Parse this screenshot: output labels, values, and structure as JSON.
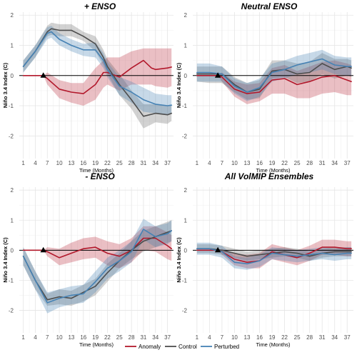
{
  "chart_data": [
    {
      "type": "line",
      "title": "+ ENSO",
      "xlabel": "Time (Months)",
      "ylabel": "Niño 3.4 Index (C)",
      "xticks": [
        "1",
        "4",
        "7",
        "10",
        "13",
        "16",
        "19",
        "22",
        "25",
        "28",
        "31",
        "34",
        "37"
      ],
      "yticks": [
        "-2",
        "-1",
        "0",
        "1",
        "2"
      ],
      "xlim": [
        0,
        38.5
      ],
      "ylim": [
        -2.75,
        2.1
      ],
      "marker": {
        "x": 6,
        "y": 0
      },
      "series": [
        {
          "name": "Anomaly",
          "color": "#b2182b",
          "x": [
            1,
            4,
            6,
            7,
            10,
            13,
            16,
            19,
            21,
            22,
            25,
            28,
            31,
            33,
            34,
            37,
            38
          ],
          "y": [
            0,
            0,
            0,
            -0.1,
            -0.45,
            -0.55,
            -0.6,
            -0.3,
            0.1,
            0.1,
            -0.05,
            0.25,
            0.5,
            0.25,
            0.2,
            0.25,
            0.28
          ],
          "lower": [
            0,
            0,
            0,
            -0.3,
            -0.75,
            -0.9,
            -1.0,
            -0.8,
            -0.4,
            -0.3,
            -0.5,
            -0.3,
            -0.3,
            -0.3,
            -0.35,
            -0.4,
            -0.35
          ],
          "upper": [
            0,
            0,
            0,
            0.1,
            -0.15,
            -0.25,
            -0.25,
            0.25,
            0.5,
            0.6,
            0.6,
            0.8,
            0.9,
            0.9,
            0.9,
            0.9,
            0.9
          ]
        },
        {
          "name": "Control",
          "color": "#4d4d4d",
          "x": [
            1,
            4,
            7,
            8,
            10,
            13,
            16,
            19,
            21,
            22,
            25,
            28,
            31,
            34,
            37,
            38
          ],
          "y": [
            0.3,
            0.8,
            1.45,
            1.55,
            1.5,
            1.5,
            1.3,
            1.05,
            0.6,
            0.3,
            -0.3,
            -0.8,
            -1.35,
            -1.25,
            -1.3,
            -1.25
          ],
          "lower": [
            0.1,
            0.6,
            1.3,
            1.35,
            1.3,
            1.3,
            1.15,
            0.8,
            0.35,
            0.05,
            -0.65,
            -1.1,
            -1.75,
            -1.55,
            -1.6,
            -1.5
          ],
          "upper": [
            0.5,
            1.0,
            1.65,
            1.75,
            1.7,
            1.7,
            1.45,
            1.3,
            0.85,
            0.55,
            0.05,
            -0.5,
            -0.95,
            -0.95,
            -1.0,
            -1.0
          ]
        },
        {
          "name": "Perturbed",
          "color": "#4682b4",
          "x": [
            1,
            4,
            7,
            8,
            10,
            13,
            16,
            19,
            21,
            22,
            25,
            28,
            31,
            34,
            37,
            38
          ],
          "y": [
            0.3,
            0.8,
            1.4,
            1.45,
            1.2,
            1.0,
            0.85,
            0.85,
            0.5,
            0.2,
            -0.35,
            -0.55,
            -0.8,
            -0.95,
            -1.0,
            -0.98
          ],
          "lower": [
            0.1,
            0.6,
            1.2,
            1.25,
            1.0,
            0.8,
            0.65,
            0.6,
            0.25,
            -0.05,
            -0.65,
            -0.9,
            -1.2,
            -1.25,
            -1.3,
            -1.25
          ],
          "upper": [
            0.5,
            1.0,
            1.6,
            1.65,
            1.4,
            1.2,
            1.05,
            1.1,
            0.75,
            0.45,
            -0.05,
            -0.2,
            -0.4,
            -0.6,
            -0.65,
            -0.65
          ]
        }
      ]
    },
    {
      "type": "line",
      "title": "Neutral ENSO",
      "xlabel": "Time (Months)",
      "ylabel": "Niño 3.4 Index (C)",
      "xticks": [
        "1",
        "4",
        "7",
        "10",
        "13",
        "16",
        "19",
        "22",
        "25",
        "28",
        "31",
        "34",
        "37"
      ],
      "yticks": [
        "-2",
        "-1",
        "0",
        "1",
        "2"
      ],
      "xlim": [
        0,
        38.5
      ],
      "ylim": [
        -2.75,
        2.1
      ],
      "marker": {
        "x": 6,
        "y": 0
      },
      "series": [
        {
          "name": "Anomaly",
          "color": "#b2182b",
          "x": [
            1,
            4,
            6,
            7,
            10,
            13,
            16,
            19,
            22,
            25,
            28,
            31,
            34,
            37,
            38
          ],
          "y": [
            0,
            0,
            0,
            -0.05,
            -0.45,
            -0.6,
            -0.55,
            -0.15,
            -0.1,
            -0.3,
            -0.2,
            -0.05,
            0.0,
            -0.15,
            -0.2
          ],
          "lower": [
            0,
            0,
            0,
            -0.2,
            -0.7,
            -0.95,
            -0.85,
            -0.6,
            -0.6,
            -0.75,
            -0.75,
            -0.6,
            -0.55,
            -0.65,
            -0.65
          ],
          "upper": [
            0,
            0,
            0,
            0.1,
            -0.2,
            -0.3,
            -0.25,
            0.25,
            0.35,
            0.15,
            0.3,
            0.45,
            0.5,
            0.4,
            0.35
          ]
        },
        {
          "name": "Control",
          "color": "#4d4d4d",
          "x": [
            1,
            4,
            7,
            10,
            13,
            16,
            19,
            22,
            25,
            28,
            31,
            34,
            37,
            38
          ],
          "y": [
            0.05,
            0.05,
            0.05,
            -0.3,
            -0.55,
            -0.45,
            0.15,
            0.2,
            0.05,
            0.1,
            0.4,
            0.2,
            0.3,
            0.25
          ],
          "lower": [
            -0.2,
            -0.25,
            -0.25,
            -0.55,
            -0.8,
            -0.75,
            -0.1,
            -0.05,
            -0.25,
            -0.2,
            0.05,
            -0.1,
            0.0,
            -0.05
          ],
          "upper": [
            0.3,
            0.3,
            0.3,
            -0.05,
            -0.25,
            -0.15,
            0.5,
            0.5,
            0.4,
            0.45,
            0.75,
            0.55,
            0.55,
            0.5
          ]
        },
        {
          "name": "Perturbed",
          "color": "#4682b4",
          "x": [
            1,
            4,
            7,
            10,
            13,
            16,
            19,
            22,
            25,
            28,
            31,
            34,
            37,
            38
          ],
          "y": [
            0.1,
            0.1,
            0.05,
            -0.35,
            -0.55,
            -0.4,
            0.1,
            0.2,
            0.35,
            0.45,
            0.55,
            0.35,
            0.3,
            0.3
          ],
          "lower": [
            -0.2,
            -0.2,
            -0.2,
            -0.6,
            -0.85,
            -0.7,
            -0.2,
            -0.1,
            0.05,
            0.1,
            0.2,
            0.05,
            0.0,
            0.0
          ],
          "upper": [
            0.4,
            0.4,
            0.3,
            -0.1,
            -0.25,
            -0.1,
            0.4,
            0.5,
            0.65,
            0.75,
            0.85,
            0.65,
            0.6,
            0.6
          ]
        }
      ]
    },
    {
      "type": "line",
      "title": "- ENSO",
      "xlabel": "Time (Months)",
      "ylabel": "Niño 3.4 Index (C)",
      "xticks": [
        "1",
        "4",
        "7",
        "10",
        "13",
        "16",
        "19",
        "22",
        "25",
        "28",
        "31",
        "34",
        "37"
      ],
      "yticks": [
        "-2",
        "-1",
        "0",
        "1",
        "2"
      ],
      "xlim": [
        0,
        38.5
      ],
      "ylim": [
        -2.75,
        2.1
      ],
      "marker": {
        "x": 6,
        "y": 0
      },
      "series": [
        {
          "name": "Anomaly",
          "color": "#b2182b",
          "x": [
            1,
            4,
            6,
            7,
            10,
            13,
            16,
            19,
            22,
            25,
            28,
            31,
            34,
            37,
            38
          ],
          "y": [
            0,
            0,
            0,
            -0.05,
            -0.25,
            -0.1,
            0.05,
            0.1,
            -0.1,
            -0.2,
            0.0,
            0.4,
            0.4,
            0.15,
            0.05
          ],
          "lower": [
            0,
            0,
            0,
            -0.2,
            -0.5,
            -0.4,
            -0.3,
            -0.25,
            -0.5,
            -0.6,
            -0.4,
            0.0,
            -0.05,
            -0.3,
            -0.35
          ],
          "upper": [
            0,
            0,
            0,
            0.1,
            0.05,
            0.25,
            0.4,
            0.45,
            0.3,
            0.2,
            0.4,
            0.8,
            0.8,
            0.6,
            0.5
          ]
        },
        {
          "name": "Control",
          "color": "#4d4d4d",
          "x": [
            1,
            4,
            7,
            10,
            13,
            16,
            19,
            22,
            25,
            28,
            31,
            34,
            37,
            38
          ],
          "y": [
            -0.2,
            -1.0,
            -1.65,
            -1.55,
            -1.6,
            -1.4,
            -1.2,
            -0.75,
            -0.35,
            0.0,
            0.3,
            0.45,
            0.6,
            0.65
          ],
          "lower": [
            -0.5,
            -1.3,
            -1.85,
            -1.8,
            -1.85,
            -1.7,
            -1.5,
            -1.05,
            -0.6,
            -0.3,
            -0.05,
            0.1,
            0.25,
            0.3
          ],
          "upper": [
            0.1,
            -0.7,
            -1.45,
            -1.3,
            -1.35,
            -1.15,
            -0.95,
            -0.45,
            -0.1,
            0.3,
            0.65,
            0.8,
            0.95,
            1.0
          ]
        },
        {
          "name": "Perturbed",
          "color": "#4682b4",
          "x": [
            1,
            4,
            7,
            10,
            13,
            16,
            19,
            22,
            25,
            28,
            31,
            34,
            37,
            38
          ],
          "y": [
            -0.2,
            -1.0,
            -1.75,
            -1.6,
            -1.5,
            -1.45,
            -1.05,
            -0.6,
            -0.35,
            -0.05,
            0.7,
            0.45,
            0.55,
            0.65
          ],
          "lower": [
            -0.5,
            -1.3,
            -2.1,
            -1.9,
            -1.8,
            -1.75,
            -1.4,
            -0.95,
            -0.7,
            -0.4,
            0.35,
            0.1,
            0.2,
            0.3
          ],
          "upper": [
            0.1,
            -0.7,
            -1.4,
            -1.3,
            -1.2,
            -1.15,
            -0.7,
            -0.25,
            0.0,
            0.3,
            1.05,
            0.8,
            0.9,
            1.0
          ]
        }
      ]
    },
    {
      "type": "line",
      "title": "All VolMIP Ensembles",
      "xlabel": "Time (Months)",
      "ylabel": "Niño 3.4 Index (C)",
      "xticks": [
        "1",
        "4",
        "7",
        "10",
        "13",
        "16",
        "19",
        "22",
        "25",
        "28",
        "31",
        "34",
        "37"
      ],
      "yticks": [
        "-2",
        "-1",
        "0",
        "1",
        "2"
      ],
      "xlim": [
        0,
        38.5
      ],
      "ylim": [
        -2.75,
        2.1
      ],
      "marker": {
        "x": 6,
        "y": 0
      },
      "series": [
        {
          "name": "Anomaly",
          "color": "#b2182b",
          "x": [
            1,
            4,
            6,
            7,
            10,
            13,
            16,
            19,
            22,
            25,
            28,
            31,
            34,
            37,
            38
          ],
          "y": [
            0,
            0,
            0,
            -0.05,
            -0.3,
            -0.4,
            -0.35,
            -0.05,
            -0.15,
            -0.25,
            -0.1,
            0.1,
            0.1,
            0.05,
            0.05
          ],
          "lower": [
            0,
            0,
            0,
            -0.15,
            -0.5,
            -0.6,
            -0.6,
            -0.3,
            -0.4,
            -0.5,
            -0.35,
            -0.15,
            -0.15,
            -0.2,
            -0.2
          ],
          "upper": [
            0,
            0,
            0,
            0.05,
            -0.1,
            -0.15,
            -0.1,
            0.2,
            0.1,
            0.0,
            0.15,
            0.35,
            0.35,
            0.3,
            0.3
          ]
        },
        {
          "name": "Control",
          "color": "#4d4d4d",
          "x": [
            1,
            4,
            7,
            10,
            13,
            16,
            19,
            22,
            25,
            28,
            31,
            34,
            37,
            38
          ],
          "y": [
            0.05,
            0.05,
            0.0,
            -0.1,
            -0.2,
            -0.15,
            -0.1,
            -0.05,
            -0.1,
            -0.2,
            -0.1,
            -0.05,
            -0.05,
            -0.05
          ],
          "lower": [
            -0.1,
            -0.1,
            -0.15,
            -0.25,
            -0.35,
            -0.3,
            -0.25,
            -0.2,
            -0.25,
            -0.35,
            -0.25,
            -0.2,
            -0.2,
            -0.2
          ],
          "upper": [
            0.2,
            0.2,
            0.15,
            0.05,
            -0.05,
            0.0,
            0.05,
            0.1,
            0.05,
            -0.05,
            0.05,
            0.1,
            0.1,
            0.1
          ]
        },
        {
          "name": "Perturbed",
          "color": "#4682b4",
          "x": [
            1,
            4,
            7,
            10,
            13,
            16,
            19,
            22,
            25,
            28,
            31,
            34,
            37,
            38
          ],
          "y": [
            0.05,
            0.05,
            -0.05,
            -0.4,
            -0.45,
            -0.35,
            -0.1,
            -0.15,
            -0.2,
            -0.15,
            -0.1,
            -0.15,
            -0.1,
            -0.1
          ],
          "lower": [
            -0.15,
            -0.15,
            -0.25,
            -0.6,
            -0.65,
            -0.55,
            -0.3,
            -0.35,
            -0.4,
            -0.35,
            -0.3,
            -0.35,
            -0.3,
            -0.3
          ],
          "upper": [
            0.25,
            0.25,
            0.15,
            -0.2,
            -0.25,
            -0.15,
            0.1,
            0.05,
            0.0,
            0.05,
            0.1,
            0.05,
            0.1,
            0.1
          ]
        }
      ]
    }
  ],
  "legend": {
    "placement": "bottom",
    "items": [
      {
        "label": "Anomaly",
        "color": "#b2182b"
      },
      {
        "label": "Control",
        "color": "#4d4d4d"
      },
      {
        "label": "Perturbed",
        "color": "#4682b4"
      }
    ]
  }
}
